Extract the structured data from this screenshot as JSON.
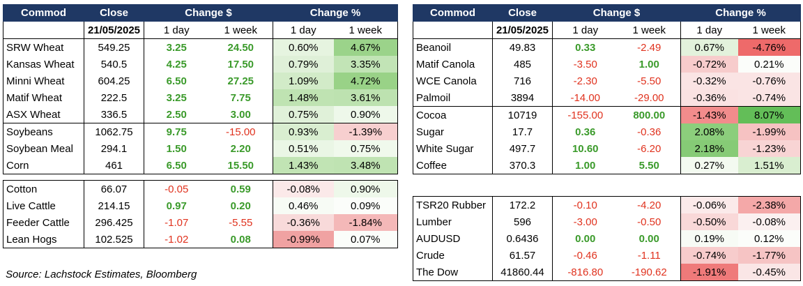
{
  "headers": {
    "commod": "Commod",
    "close": "Close",
    "change_abs": "Change $",
    "change_pct": "Change %"
  },
  "subheaders": {
    "date": "21/05/2025",
    "day": "1 day",
    "week": "1 week"
  },
  "tables": [
    {
      "groups": [
        [
          {
            "name": "SRW Wheat",
            "close": "549.25",
            "d": "3.25",
            "w": "24.50",
            "dp": "0.60%",
            "wp": "4.67%",
            "dpc": "#e6f4e0",
            "wpc": "#9bd38a",
            "ds": "pos",
            "ws": "pos"
          },
          {
            "name": "Kansas Wheat",
            "close": "540.5",
            "d": "4.25",
            "w": "17.50",
            "dp": "0.79%",
            "wp": "3.35%",
            "dpc": "#dff0d8",
            "wpc": "#c2e4b6",
            "ds": "pos",
            "ws": "pos"
          },
          {
            "name": "Minni Wheat",
            "close": "604.25",
            "d": "6.50",
            "w": "27.25",
            "dp": "1.09%",
            "wp": "4.72%",
            "dpc": "#d2ebc8",
            "wpc": "#99d287",
            "ds": "pos",
            "ws": "pos"
          },
          {
            "name": "Matif Wheat",
            "close": "222.5",
            "d": "3.25",
            "w": "7.75",
            "dp": "1.48%",
            "wp": "3.61%",
            "dpc": "#bfe3b2",
            "wpc": "#bde2b0",
            "ds": "pos",
            "ws": "pos"
          },
          {
            "name": "ASX Wheat",
            "close": "336.5",
            "d": "2.50",
            "w": "3.00",
            "dp": "0.75%",
            "wp": "0.90%",
            "dpc": "#e0f1d9",
            "wpc": "#eef8ea",
            "ds": "pos",
            "ws": "pos"
          }
        ],
        [
          {
            "name": "Soybeans",
            "close": "1062.75",
            "d": "9.75",
            "w": "-15.00",
            "dp": "0.93%",
            "wp": "-1.39%",
            "dpc": "#d9eed0",
            "wpc": "#f7cfcf",
            "ds": "pos",
            "ws": "neg"
          },
          {
            "name": "Soybean Meal",
            "close": "294.1",
            "d": "1.50",
            "w": "2.20",
            "dp": "0.51%",
            "wp": "0.75%",
            "dpc": "#eaf6e5",
            "wpc": "#f0f9ec",
            "ds": "pos",
            "ws": "pos"
          },
          {
            "name": "Corn",
            "close": "461",
            "d": "6.50",
            "w": "15.50",
            "dp": "1.43%",
            "wp": "3.48%",
            "dpc": "#c1e4b4",
            "wpc": "#bfe3b2",
            "ds": "pos",
            "ws": "pos"
          }
        ]
      ]
    },
    {
      "groups": [
        [
          {
            "name": "Cotton",
            "close": "66.07",
            "d": "-0.05",
            "w": "0.59",
            "dp": "-0.08%",
            "wp": "0.90%",
            "dpc": "#fbe9e9",
            "wpc": "#eef8ea",
            "ds": "neg",
            "ws": "pos"
          },
          {
            "name": "Live Cattle",
            "close": "214.15",
            "d": "0.97",
            "w": "0.20",
            "dp": "0.46%",
            "wp": "0.09%",
            "dpc": "#f7fbf5",
            "wpc": "#fbfdfa",
            "ds": "pos",
            "ws": "pos"
          },
          {
            "name": "Feeder Cattle",
            "close": "296.425",
            "d": "-1.07",
            "w": "-5.55",
            "dp": "-0.36%",
            "wp": "-1.84%",
            "dpc": "#f8dada",
            "wpc": "#f4b8b8",
            "ds": "neg",
            "ws": "neg"
          },
          {
            "name": "Lean Hogs",
            "close": "102.525",
            "d": "-1.02",
            "w": "0.08",
            "dp": "-0.99%",
            "wp": "0.07%",
            "dpc": "#f0a2a2",
            "wpc": "#fbfdfa",
            "ds": "neg",
            "ws": "pos"
          }
        ]
      ]
    },
    {
      "groups": [
        [
          {
            "name": "Beanoil",
            "close": "49.83",
            "d": "0.33",
            "w": "-2.49",
            "dp": "0.67%",
            "wp": "-4.76%",
            "dpc": "#e3f2dc",
            "wpc": "#ee6a6a",
            "ds": "pos",
            "ws": "neg"
          },
          {
            "name": "Matif Canola",
            "close": "485",
            "d": "-3.50",
            "w": "1.00",
            "dp": "-0.72%",
            "wp": "0.21%",
            "dpc": "#f7cccc",
            "wpc": "#fbfdfa",
            "ds": "neg",
            "ws": "pos"
          },
          {
            "name": "WCE Canola",
            "close": "716",
            "d": "-2.30",
            "w": "-5.50",
            "dp": "-0.32%",
            "wp": "-0.76%",
            "dpc": "#fae4e4",
            "wpc": "#fae4e4",
            "ds": "neg",
            "ws": "neg"
          },
          {
            "name": "Palmoil",
            "close": "3894",
            "d": "-14.00",
            "w": "-29.00",
            "dp": "-0.36%",
            "wp": "-0.74%",
            "dpc": "#fae2e2",
            "wpc": "#fae4e4",
            "ds": "neg",
            "ws": "neg"
          }
        ],
        [
          {
            "name": "Cocoa",
            "close": "10719",
            "d": "-155.00",
            "w": "800.00",
            "dp": "-1.43%",
            "wp": "8.07%",
            "dpc": "#f28c8c",
            "wpc": "#63be58",
            "ds": "neg",
            "ws": "pos"
          },
          {
            "name": "Sugar",
            "close": "17.7",
            "d": "0.36",
            "w": "-0.36",
            "dp": "2.08%",
            "wp": "-1.99%",
            "dpc": "#8cce7c",
            "wpc": "#f6c2c2",
            "ds": "pos",
            "ws": "neg"
          },
          {
            "name": "White Sugar",
            "close": "497.7",
            "d": "10.60",
            "w": "-6.20",
            "dp": "2.18%",
            "wp": "-1.23%",
            "dpc": "#86cb76",
            "wpc": "#f8d4d4",
            "ds": "pos",
            "ws": "neg"
          },
          {
            "name": "Coffee",
            "close": "370.3",
            "d": "1.00",
            "w": "5.50",
            "dp": "0.27%",
            "wp": "1.51%",
            "dpc": "#f3faf0",
            "wpc": "#d9eed0",
            "ds": "pos",
            "ws": "pos"
          }
        ]
      ]
    },
    {
      "groups": [
        [
          {
            "name": "TSR20 Rubber",
            "close": "172.2",
            "d": "-0.10",
            "w": "-4.20",
            "dp": "-0.06%",
            "wp": "-2.38%",
            "dpc": "#fbeaea",
            "wpc": "#f4a8a8",
            "ds": "neg",
            "ws": "neg"
          },
          {
            "name": "Lumber",
            "close": "596",
            "d": "-3.00",
            "w": "-0.50",
            "dp": "-0.50%",
            "wp": "-0.08%",
            "dpc": "#f9d8d8",
            "wpc": "#fbf0f0",
            "ds": "neg",
            "ws": "neg"
          },
          {
            "name": "AUDUSD",
            "close": "0.6436",
            "d": "0.00",
            "w": "0.00",
            "dp": "0.19%",
            "wp": "0.12%",
            "dpc": "#f7fbf5",
            "wpc": "#fbfdfa",
            "ds": "pos",
            "ws": "pos"
          },
          {
            "name": "Crude",
            "close": "61.57",
            "d": "-0.46",
            "w": "-1.11",
            "dp": "-0.74%",
            "wp": "-1.77%",
            "dpc": "#f7cccc",
            "wpc": "#f6c4c4",
            "ds": "neg",
            "ws": "neg"
          },
          {
            "name": "The Dow",
            "close": "41860.44",
            "d": "-816.80",
            "w": "-190.62",
            "dp": "-1.91%",
            "wp": "-0.45%",
            "dpc": "#ef7a7a",
            "wpc": "#fae6e6",
            "ds": "neg",
            "ws": "neg"
          }
        ]
      ]
    }
  ],
  "source": "Source: Lachstock Estimates, Bloomberg"
}
